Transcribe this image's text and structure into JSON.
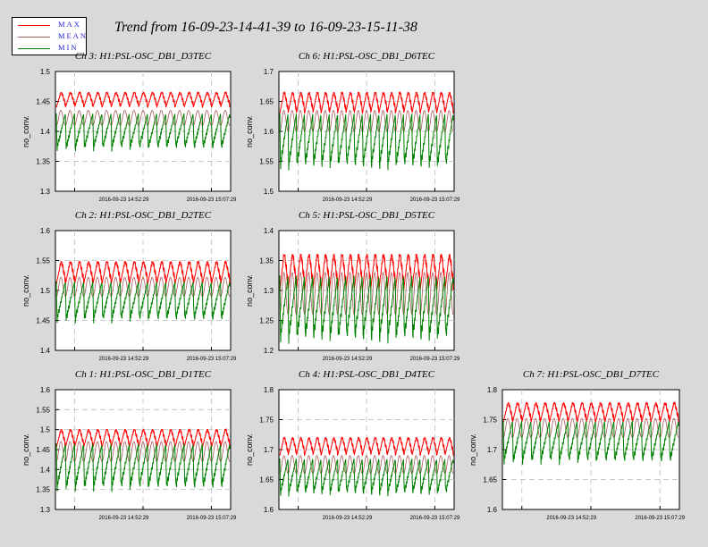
{
  "title": "Trend from 16-09-23-14-41-39 to 16-09-23-15-11-38",
  "legend": [
    {
      "label": "MAX",
      "color": "#ff0000"
    },
    {
      "label": "MEAN",
      "color": "#a85a5a"
    },
    {
      "label": "MIN",
      "color": "#008000"
    }
  ],
  "chart_data": [
    {
      "type": "line",
      "title": "Ch 3: H1:PSL-OSC_DB1_D3TEC",
      "ylabel": "no_conv.",
      "ylim": [
        1.3,
        1.5
      ],
      "yticks": [
        "1.3",
        "1.35",
        "1.4",
        "1.45",
        "1.5"
      ],
      "xticks": [
        "2016-09-23 14:52:29",
        "2016-09-23 15:07:29"
      ],
      "cycles": 19,
      "series": [
        {
          "name": "MAX",
          "values": [
            1.44,
            1.465
          ]
        },
        {
          "name": "MEAN",
          "values": [
            1.41,
            1.435
          ]
        },
        {
          "name": "MIN",
          "values": [
            1.38,
            1.43
          ]
        }
      ]
    },
    {
      "type": "line",
      "title": "Ch 6: H1:PSL-OSC_DB1_D6TEC",
      "ylabel": "no_conv.",
      "ylim": [
        1.5,
        1.7
      ],
      "yticks": [
        "1.5",
        "1.55",
        "1.6",
        "1.65",
        "1.7"
      ],
      "xticks": [
        "2016-09-23 14:52:29",
        "2016-09-23 15:07:29"
      ],
      "cycles": 21,
      "series": [
        {
          "name": "MAX",
          "values": [
            1.63,
            1.665
          ]
        },
        {
          "name": "MEAN",
          "values": [
            1.6,
            1.635
          ]
        },
        {
          "name": "MIN",
          "values": [
            1.555,
            1.63
          ]
        }
      ]
    },
    {
      "type": "line",
      "title": "Ch 2: H1:PSL-OSC_DB1_D2TEC",
      "ylabel": "no_conv.",
      "ylim": [
        1.4,
        1.6
      ],
      "yticks": [
        "1.4",
        "1.45",
        "1.5",
        "1.55",
        "1.6"
      ],
      "xticks": [
        "2016-09-23 14:52:29",
        "2016-09-23 15:07:29"
      ],
      "cycles": 19,
      "series": [
        {
          "name": "MAX",
          "values": [
            1.51,
            1.548
          ]
        },
        {
          "name": "MEAN",
          "values": [
            1.49,
            1.522
          ]
        },
        {
          "name": "MIN",
          "values": [
            1.46,
            1.515
          ]
        }
      ]
    },
    {
      "type": "line",
      "title": "Ch 5: H1:PSL-OSC_DB1_D5TEC",
      "ylabel": "no_conv.",
      "ylim": [
        1.2,
        1.4
      ],
      "yticks": [
        "1.2",
        "1.25",
        "1.3",
        "1.35",
        "1.4"
      ],
      "xticks": [
        "2016-09-23 14:52:29",
        "2016-09-23 15:07:29"
      ],
      "cycles": 21,
      "series": [
        {
          "name": "MAX",
          "values": [
            1.3,
            1.36
          ]
        },
        {
          "name": "MEAN",
          "values": [
            1.26,
            1.33
          ]
        },
        {
          "name": "MIN",
          "values": [
            1.235,
            1.325
          ]
        }
      ]
    },
    {
      "type": "line",
      "title": "Ch 1: H1:PSL-OSC_DB1_D1TEC",
      "ylabel": "no_conv.",
      "ylim": [
        1.3,
        1.6
      ],
      "yticks": [
        "1.3",
        "1.35",
        "1.4",
        "1.45",
        "1.5",
        "1.55",
        "1.6"
      ],
      "xticks": [
        "2016-09-23 14:52:29",
        "2016-09-23 15:07:29"
      ],
      "cycles": 19,
      "series": [
        {
          "name": "MAX",
          "values": [
            1.455,
            1.5
          ]
        },
        {
          "name": "MEAN",
          "values": [
            1.42,
            1.47
          ]
        },
        {
          "name": "MIN",
          "values": [
            1.37,
            1.465
          ]
        }
      ]
    },
    {
      "type": "line",
      "title": "Ch 4: H1:PSL-OSC_DB1_D4TEC",
      "ylabel": "no_conv.",
      "ylim": [
        1.6,
        1.8
      ],
      "yticks": [
        "1.6",
        "1.65",
        "1.7",
        "1.75",
        "1.8"
      ],
      "xticks": [
        "2016-09-23 14:52:29",
        "2016-09-23 15:07:29"
      ],
      "cycles": 21,
      "series": [
        {
          "name": "MAX",
          "values": [
            1.69,
            1.72
          ]
        },
        {
          "name": "MEAN",
          "values": [
            1.66,
            1.69
          ]
        },
        {
          "name": "MIN",
          "values": [
            1.635,
            1.685
          ]
        }
      ]
    },
    {
      "type": "line",
      "title": "Ch 7: H1:PSL-OSC_DB1_D7TEC",
      "ylabel": "no_conv.",
      "ylim": [
        1.6,
        1.8
      ],
      "yticks": [
        "1.6",
        "1.65",
        "1.7",
        "1.75",
        "1.8"
      ],
      "xticks": [
        "2016-09-23 14:52:29",
        "2016-09-23 15:07:29"
      ],
      "cycles": 19,
      "series": [
        {
          "name": "MAX",
          "values": [
            1.745,
            1.778
          ]
        },
        {
          "name": "MEAN",
          "values": [
            1.72,
            1.752
          ]
        },
        {
          "name": "MIN",
          "values": [
            1.69,
            1.748
          ]
        }
      ]
    }
  ]
}
